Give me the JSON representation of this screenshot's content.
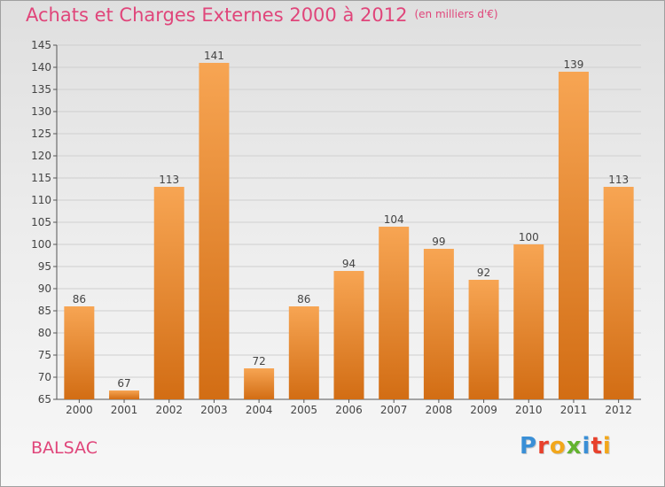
{
  "header": {
    "title": "Achats et Charges Externes 2000 à 2012",
    "subtitle": "(en milliers d'€)"
  },
  "footer": {
    "commune": "BALSAC",
    "brand": "Proxiti"
  },
  "chart_data": {
    "type": "bar",
    "title": "Achats et Charges Externes 2000 à 2012",
    "subtitle": "(en milliers d'€)",
    "xlabel": "",
    "ylabel": "",
    "categories": [
      "2000",
      "2001",
      "2002",
      "2003",
      "2004",
      "2005",
      "2006",
      "2007",
      "2008",
      "2009",
      "2010",
      "2011",
      "2012"
    ],
    "values": [
      86,
      67,
      113,
      141,
      72,
      86,
      94,
      104,
      99,
      92,
      100,
      139,
      113
    ],
    "ylim": [
      65,
      145
    ],
    "yticks": [
      65,
      70,
      75,
      80,
      85,
      90,
      95,
      100,
      105,
      110,
      115,
      120,
      125,
      130,
      135,
      140,
      145
    ],
    "grid": true,
    "legend": "none",
    "colors": {
      "bar_light": "#f7a553",
      "bar_dark": "#d26d14",
      "title": "#e0457a",
      "grid": "#cfcfcf",
      "axis": "#555555"
    }
  }
}
